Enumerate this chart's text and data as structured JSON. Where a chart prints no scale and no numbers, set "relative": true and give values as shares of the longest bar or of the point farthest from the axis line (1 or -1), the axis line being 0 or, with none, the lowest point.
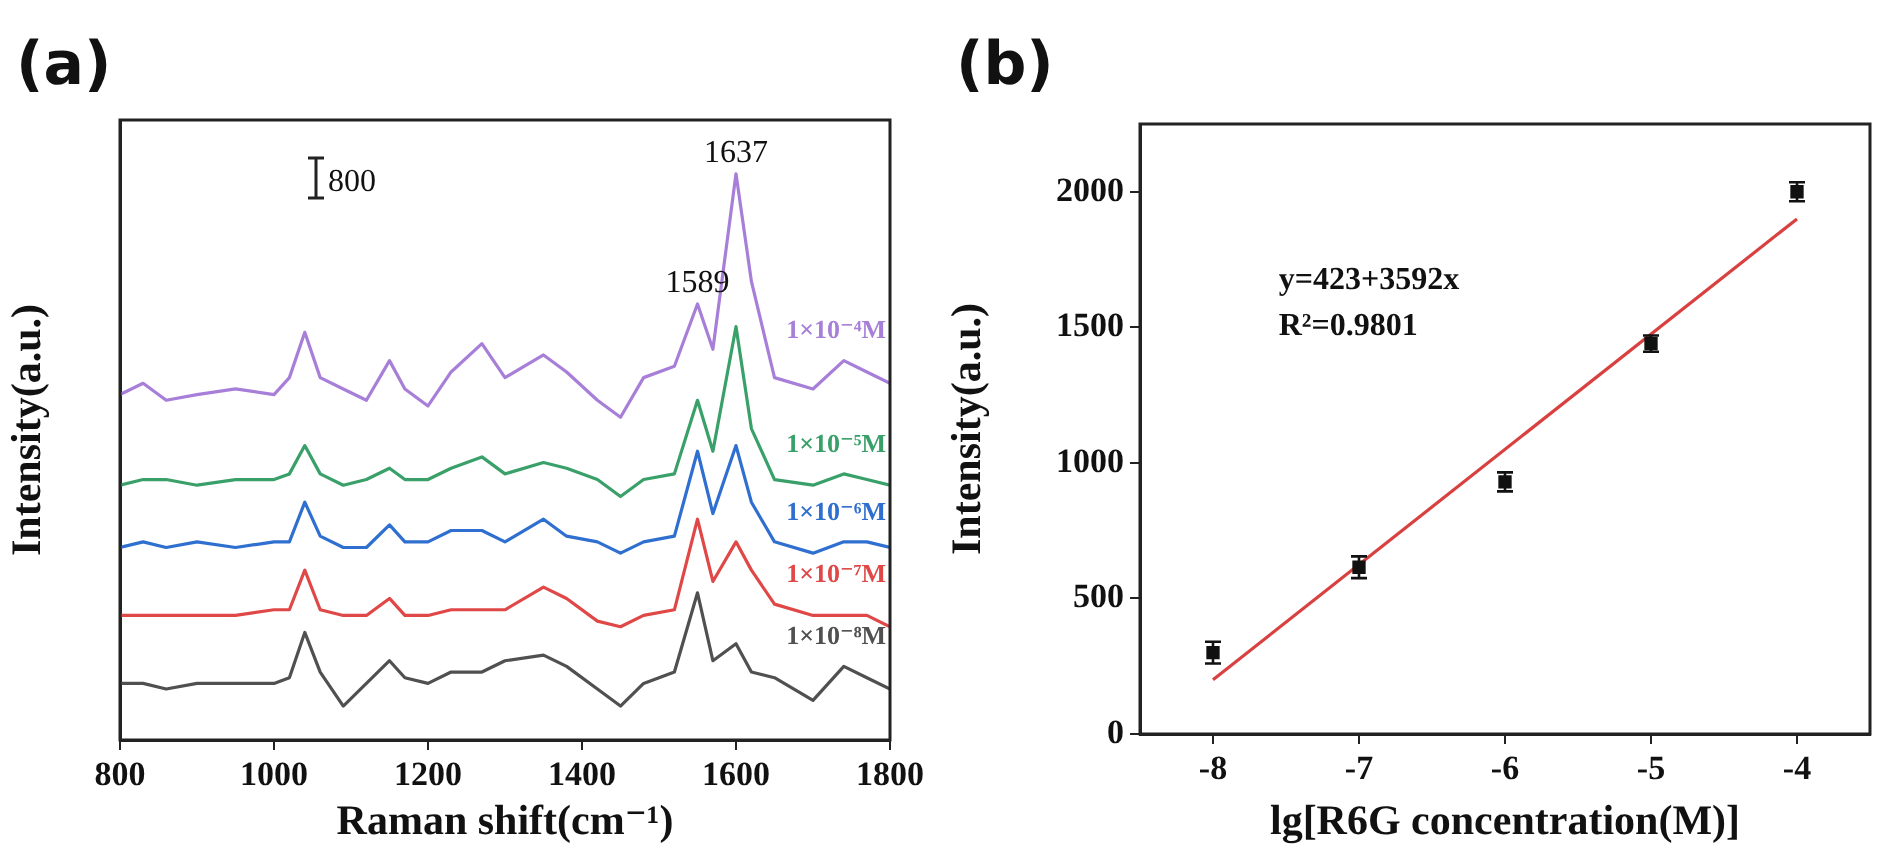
{
  "chart_data": [
    {
      "type": "line",
      "title": "(a)",
      "xlabel": "Raman shift(cm⁻¹)",
      "ylabel": "Intensity(a.u.)",
      "relative": true,
      "xlim": [
        800,
        1800
      ],
      "xticks": [
        800,
        1000,
        1200,
        1400,
        1600,
        1800
      ],
      "marker": "none",
      "x": [
        800,
        830,
        860,
        900,
        950,
        1000,
        1020,
        1040,
        1060,
        1090,
        1120,
        1150,
        1170,
        1200,
        1230,
        1270,
        1300,
        1350,
        1380,
        1420,
        1450,
        1480,
        1520,
        1550,
        1570,
        1600,
        1620,
        1650,
        1700,
        1740,
        1770,
        1800
      ],
      "series": [
        {
          "name": "1×10⁻⁴M",
          "color": "#a77fd8",
          "values": [
            0.61,
            0.63,
            0.6,
            0.61,
            0.62,
            0.61,
            0.64,
            0.72,
            0.64,
            0.62,
            0.6,
            0.67,
            0.62,
            0.59,
            0.65,
            0.7,
            0.64,
            0.68,
            0.65,
            0.6,
            0.57,
            0.64,
            0.66,
            0.77,
            0.69,
            1,
            0.81,
            0.64,
            0.62,
            0.67,
            0.65,
            0.63
          ]
        },
        {
          "name": "1×10⁻⁵M",
          "color": "#3aa06a",
          "values": [
            0.45,
            0.46,
            0.46,
            0.45,
            0.46,
            0.46,
            0.47,
            0.52,
            0.47,
            0.45,
            0.46,
            0.48,
            0.46,
            0.46,
            0.48,
            0.5,
            0.47,
            0.49,
            0.48,
            0.46,
            0.43,
            0.46,
            0.47,
            0.6,
            0.51,
            0.73,
            0.55,
            0.46,
            0.45,
            0.47,
            0.46,
            0.45
          ]
        },
        {
          "name": "1×10⁻⁶M",
          "color": "#2f6fcf",
          "values": [
            0.34,
            0.35,
            0.34,
            0.35,
            0.34,
            0.35,
            0.35,
            0.42,
            0.36,
            0.34,
            0.34,
            0.38,
            0.35,
            0.35,
            0.37,
            0.37,
            0.35,
            0.39,
            0.36,
            0.35,
            0.33,
            0.35,
            0.36,
            0.51,
            0.4,
            0.52,
            0.42,
            0.35,
            0.33,
            0.35,
            0.35,
            0.34
          ]
        },
        {
          "name": "1×10⁻⁷M",
          "color": "#e04848",
          "values": [
            0.22,
            0.22,
            0.22,
            0.22,
            0.22,
            0.23,
            0.23,
            0.3,
            0.23,
            0.22,
            0.22,
            0.25,
            0.22,
            0.22,
            0.23,
            0.23,
            0.23,
            0.27,
            0.25,
            0.21,
            0.2,
            0.22,
            0.23,
            0.39,
            0.28,
            0.35,
            0.3,
            0.24,
            0.22,
            0.22,
            0.22,
            0.2
          ]
        },
        {
          "name": "1×10⁻⁸M",
          "color": "#505050",
          "values": [
            0.1,
            0.1,
            0.09,
            0.1,
            0.1,
            0.1,
            0.11,
            0.19,
            0.12,
            0.06,
            0.1,
            0.14,
            0.11,
            0.1,
            0.12,
            0.12,
            0.14,
            0.15,
            0.13,
            0.09,
            0.06,
            0.1,
            0.12,
            0.26,
            0.14,
            0.17,
            0.12,
            0.11,
            0.07,
            0.13,
            0.11,
            0.09
          ]
        }
      ],
      "annotations": [
        {
          "text": "1637",
          "x": 1600,
          "y": 1
        },
        {
          "text": "1589",
          "x": 1550,
          "y": 0.77
        },
        "800"
      ]
    },
    {
      "type": "scatter",
      "title": "(b)",
      "xlabel": "lg[R6G concentration(M)]",
      "ylabel": "Intensity(a.u.)",
      "xlim": [
        -8.5,
        -3.5
      ],
      "xticks": [
        -8,
        -7,
        -6,
        -5,
        -4
      ],
      "ylim": [
        0,
        2250
      ],
      "yticks": [
        0,
        500,
        1000,
        1500,
        2000
      ],
      "series": [
        {
          "type": "scatter",
          "marker": "square",
          "color": "#111111",
          "x": [
            -8,
            -7,
            -6,
            -5,
            -4
          ],
          "values": [
            300,
            615,
            930,
            1440,
            2000
          ],
          "errors": [
            40,
            40,
            35,
            30,
            35
          ]
        },
        {
          "type": "line",
          "color": "#d94040",
          "x": [
            -8,
            -4
          ],
          "values": [
            200,
            1900
          ]
        }
      ],
      "annotations": [
        "y=423+3592x",
        "R²=0.9801"
      ]
    }
  ]
}
